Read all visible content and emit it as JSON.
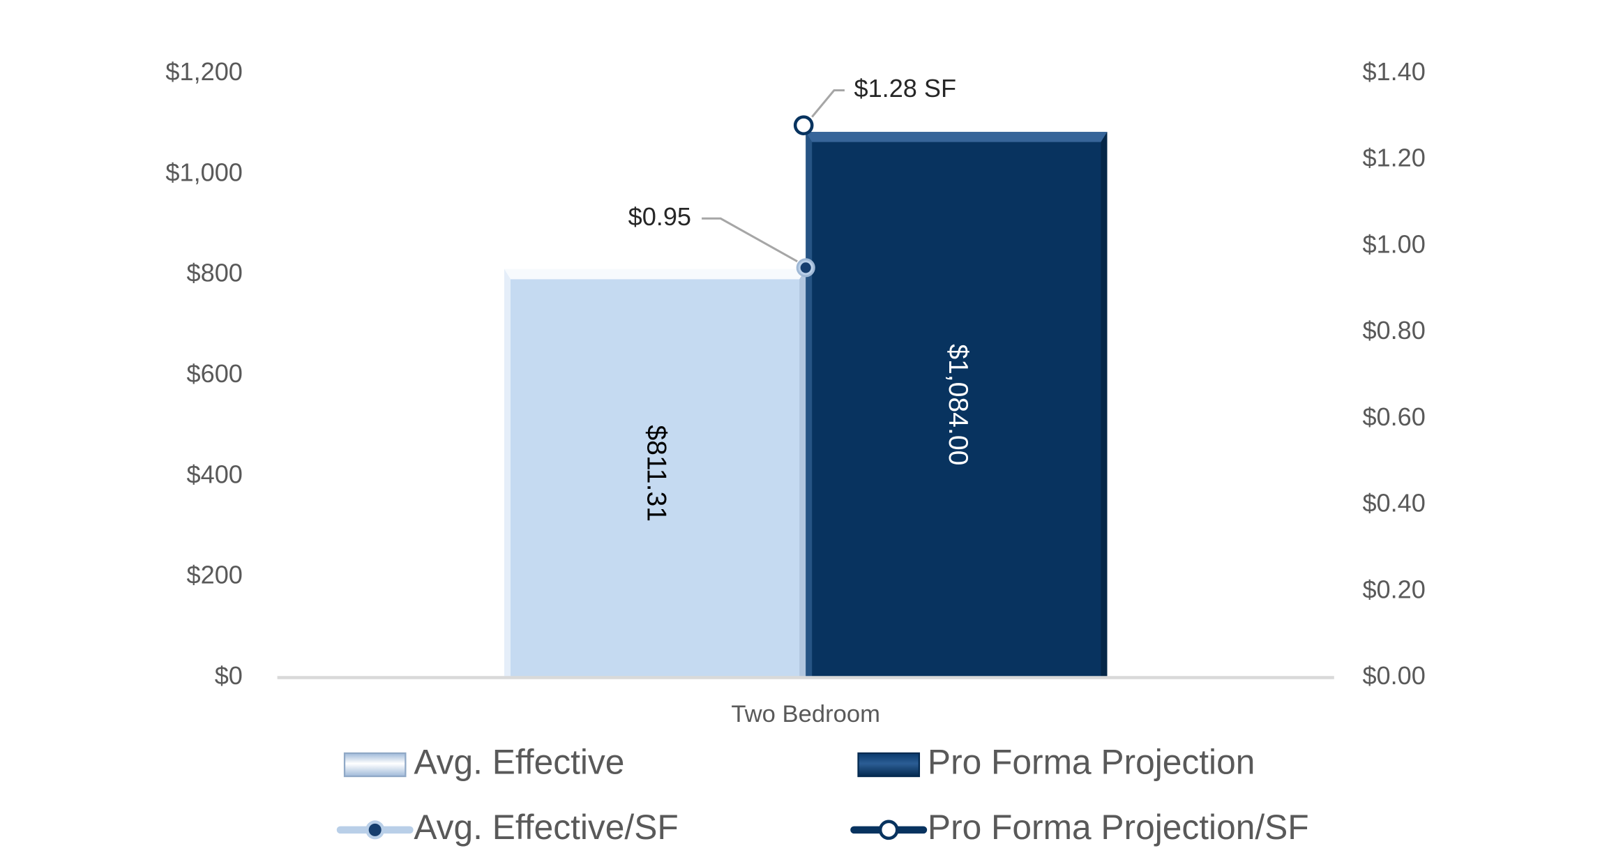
{
  "chart_data": {
    "type": "bar",
    "categories": [
      "Two Bedroom"
    ],
    "series": [
      {
        "name": "Avg. Effective",
        "kind": "bar",
        "axis": "left",
        "values": [
          811.31
        ],
        "labels": [
          "$811.31"
        ],
        "color": "#c5daf1"
      },
      {
        "name": "Pro Forma Projection",
        "kind": "bar",
        "axis": "left",
        "values": [
          1084.0
        ],
        "labels": [
          "$1,084.00"
        ],
        "color": "#08335f"
      },
      {
        "name": "Avg. Effective/SF",
        "kind": "line",
        "axis": "right",
        "values": [
          0.95
        ],
        "labels": [
          "$0.95"
        ],
        "color": "#b9cfe8"
      },
      {
        "name": "Pro Forma Projection/SF",
        "kind": "line",
        "axis": "right",
        "values": [
          1.28
        ],
        "labels": [
          "$1.28 SF"
        ],
        "color": "#08335f"
      }
    ],
    "title": "",
    "xlabel": "",
    "ylabel": "",
    "ylim": [
      0,
      1200
    ],
    "y2lim": [
      0,
      1.4
    ],
    "yticks": [
      "$0",
      "$200",
      "$400",
      "$600",
      "$800",
      "$1,000",
      "$1,200"
    ],
    "y2ticks": [
      "$0.00",
      "$0.20",
      "$0.40",
      "$0.60",
      "$0.80",
      "$1.00",
      "$1.20",
      "$1.40"
    ],
    "grid": false,
    "legend_position": "bottom"
  }
}
